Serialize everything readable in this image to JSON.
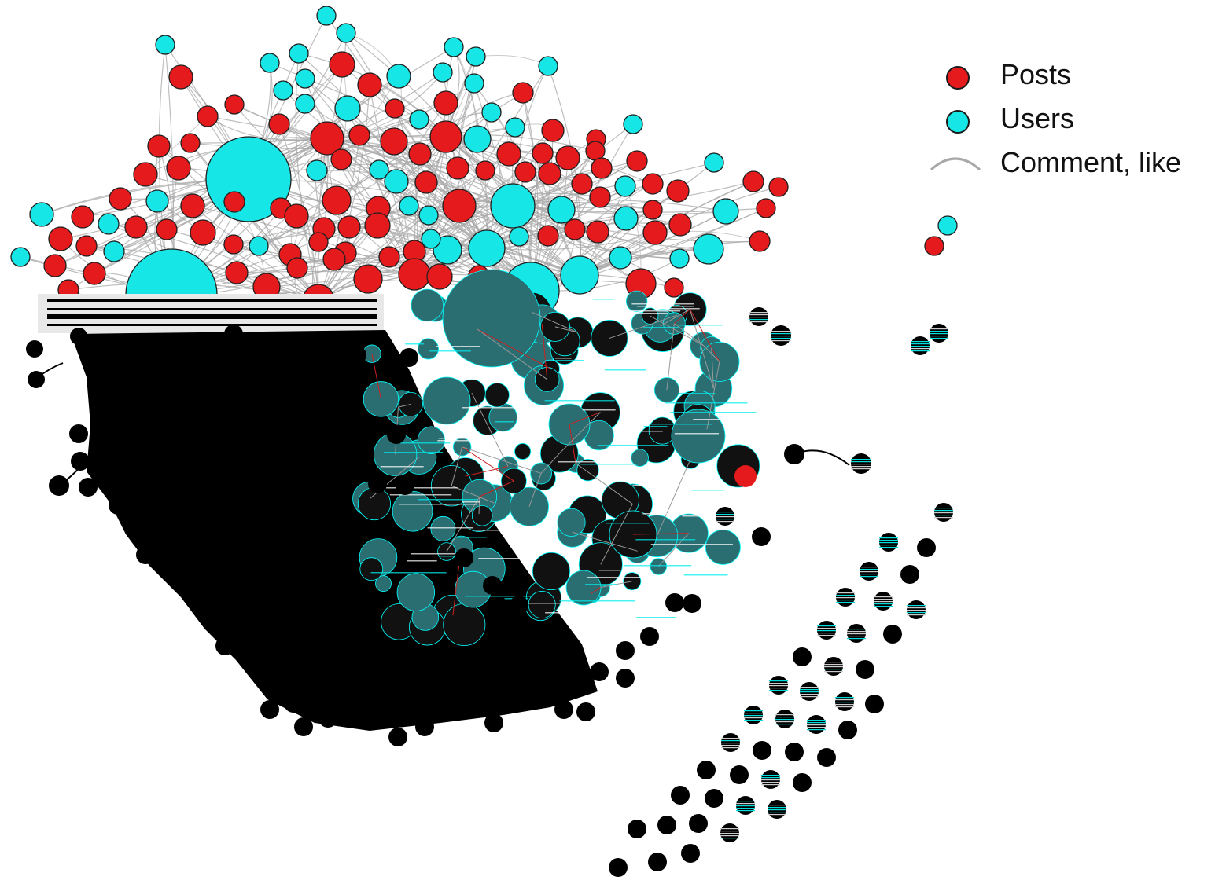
{
  "legend": {
    "posts_label": "Posts",
    "users_label": "Users",
    "edge_label": "Comment, like"
  },
  "colors": {
    "post": "#e41a1c",
    "user": "#16e6e6",
    "edge": "#a8a8a8",
    "outline": "#1f1f1f",
    "artifact": "#000000"
  },
  "node_types": [
    "post",
    "user"
  ],
  "edge_type": "comment-like",
  "rendering_note_visible": "lower half of network rendered as black/glitched artifact"
}
